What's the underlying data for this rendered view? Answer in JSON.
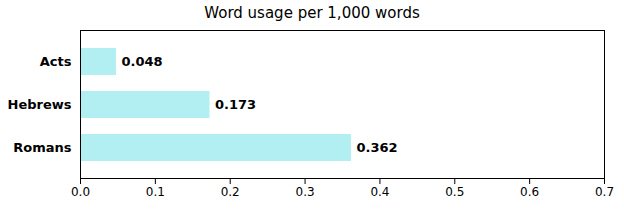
{
  "chart_data": {
    "type": "bar",
    "orientation": "horizontal",
    "title": "Word usage per 1,000 words",
    "categories": [
      "Romans",
      "Hebrews",
      "Acts"
    ],
    "values": [
      0.362,
      0.173,
      0.048
    ],
    "color": "#b2eff2",
    "xlim": [
      0.0,
      0.7
    ],
    "xticks": [
      {
        "value": 0,
        "label": "0.0"
      },
      0.1,
      0.2,
      0.3,
      0.4,
      0.5,
      0.6,
      0.7
    ],
    "data_labels": true,
    "grid": false
  }
}
